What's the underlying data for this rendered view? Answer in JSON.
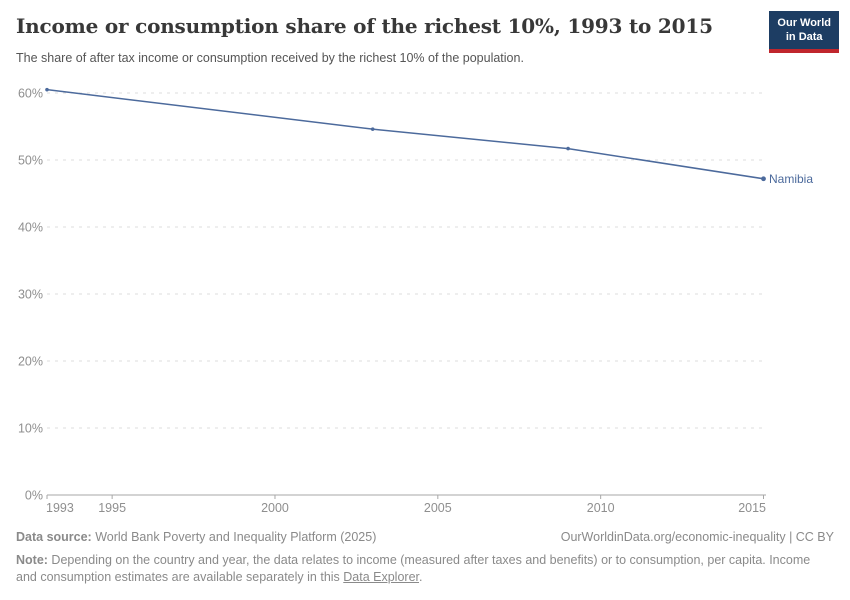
{
  "header": {
    "title": "Income or consumption share of the richest 10%, 1993 to 2015",
    "subtitle": "The share of after tax income or consumption received by the richest 10% of the population."
  },
  "logo": {
    "line1": "Our World",
    "line2": "in Data",
    "bg_color": "#1d3d63",
    "accent_color": "#c0262d"
  },
  "chart_data": {
    "type": "line",
    "title": "Income or consumption share of the richest 10%, 1993 to 2015",
    "xlabel": "",
    "ylabel": "",
    "xlim": [
      1993,
      2015
    ],
    "ylim": [
      0,
      60
    ],
    "x_ticks": [
      1993,
      1995,
      2000,
      2005,
      2010,
      2015
    ],
    "y_ticks": [
      0,
      10,
      20,
      30,
      40,
      50,
      60
    ],
    "y_tick_suffix": "%",
    "grid": "horizontal-dashed",
    "legend_position": "end-of-line-label",
    "series": [
      {
        "name": "Namibia",
        "color": "#4c6a9c",
        "points": [
          {
            "x": 1993,
            "y": 60.5
          },
          {
            "x": 2003,
            "y": 54.6
          },
          {
            "x": 2009,
            "y": 51.7
          },
          {
            "x": 2015,
            "y": 47.2
          }
        ]
      }
    ]
  },
  "footer": {
    "source_label": "Data source:",
    "source_value": " World Bank Poverty and Inequality Platform (2025)",
    "link": "OurWorldinData.org/economic-inequality | CC BY",
    "note_label": "Note:",
    "note_text": " Depending on the country and year, the data relates to income (measured after taxes and benefits) or to consumption, per capita. Income and consumption estimates are available separately in this ",
    "note_link": "Data Explorer",
    "note_tail": "."
  }
}
